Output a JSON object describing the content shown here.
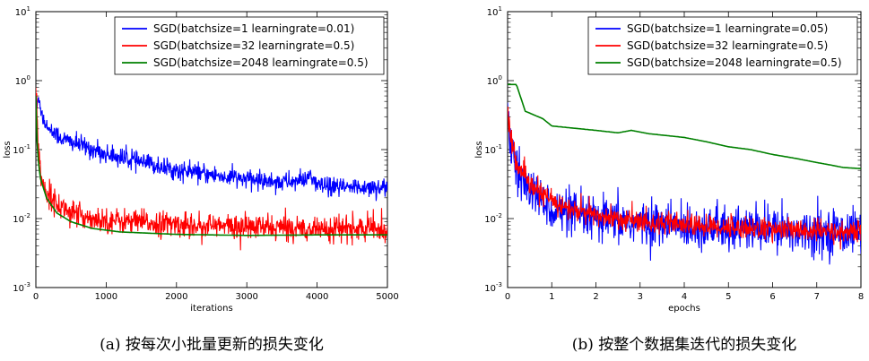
{
  "chart_data": [
    {
      "type": "line",
      "id": "a",
      "yscale": "log",
      "ylabel": "loss",
      "xlabel": "iterations",
      "xlim": [
        0,
        5000
      ],
      "xticks": [
        0,
        1000,
        2000,
        3000,
        4000,
        5000
      ],
      "ylim_exp": [
        -3,
        1
      ],
      "caption": "(a) 按每次小批量更新的损失变化",
      "legend_position": "top-right",
      "series": [
        {
          "name": "SGD(batchsize=1 learningrate=0.01)",
          "color": "#0000ff",
          "noise": 0.07,
          "points": [
            [
              0,
              0.3
            ],
            [
              40,
              0.6
            ],
            [
              100,
              0.28
            ],
            [
              200,
              0.19
            ],
            [
              400,
              0.14
            ],
            [
              700,
              0.11
            ],
            [
              1000,
              0.085
            ],
            [
              1500,
              0.065
            ],
            [
              2000,
              0.05
            ],
            [
              2500,
              0.043
            ],
            [
              3000,
              0.037
            ],
            [
              3500,
              0.034
            ],
            [
              3800,
              0.035
            ],
            [
              3900,
              0.043
            ],
            [
              4000,
              0.03
            ],
            [
              4200,
              0.028
            ],
            [
              4500,
              0.028
            ],
            [
              4700,
              0.029
            ],
            [
              5000,
              0.028
            ]
          ]
        },
        {
          "name": "SGD(batchsize=32 learningrate=0.5)",
          "color": "#ff0000",
          "noise": 0.09,
          "points": [
            [
              0,
              1.0
            ],
            [
              30,
              0.1
            ],
            [
              80,
              0.04
            ],
            [
              150,
              0.025
            ],
            [
              300,
              0.016
            ],
            [
              600,
              0.011
            ],
            [
              1000,
              0.0095
            ],
            [
              2000,
              0.0082
            ],
            [
              3000,
              0.0075
            ],
            [
              4000,
              0.0072
            ],
            [
              5000,
              0.007
            ]
          ]
        },
        {
          "name": "SGD(batchsize=2048 learningrate=0.5)",
          "color": "#008000",
          "noise": 0.0,
          "points": [
            [
              0,
              0.6
            ],
            [
              20,
              0.1
            ],
            [
              60,
              0.04
            ],
            [
              150,
              0.02
            ],
            [
              300,
              0.012
            ],
            [
              500,
              0.009
            ],
            [
              800,
              0.0072
            ],
            [
              1200,
              0.0064
            ],
            [
              2000,
              0.0059
            ],
            [
              3000,
              0.0057
            ],
            [
              4000,
              0.0058
            ],
            [
              5000,
              0.0058
            ]
          ]
        }
      ]
    },
    {
      "type": "line",
      "id": "b",
      "yscale": "log",
      "ylabel": "loss",
      "xlabel": "epochs",
      "xlim": [
        0,
        8
      ],
      "xticks": [
        0,
        1,
        2,
        3,
        4,
        5,
        6,
        7,
        8
      ],
      "ylim_exp": [
        -3,
        1
      ],
      "caption": "(b) 按整个数据集迭代的损失变化",
      "legend_position": "top-right",
      "series": [
        {
          "name": "SGD(batchsize=1 learningrate=0.05)",
          "color": "#0000ff",
          "noise": 0.16,
          "points": [
            [
              0,
              0.4
            ],
            [
              0.05,
              0.12
            ],
            [
              0.2,
              0.05
            ],
            [
              0.5,
              0.025
            ],
            [
              1,
              0.014
            ],
            [
              1.5,
              0.011
            ],
            [
              2,
              0.0095
            ],
            [
              3,
              0.0085
            ],
            [
              4,
              0.0078
            ],
            [
              5,
              0.0072
            ],
            [
              6,
              0.0068
            ],
            [
              7,
              0.0066
            ],
            [
              8,
              0.0064
            ]
          ]
        },
        {
          "name": "SGD(batchsize=32 learningrate=0.5)",
          "color": "#ff0000",
          "noise": 0.08,
          "points": [
            [
              0,
              0.35
            ],
            [
              0.05,
              0.2
            ],
            [
              0.2,
              0.06
            ],
            [
              0.5,
              0.03
            ],
            [
              1,
              0.018
            ],
            [
              1.5,
              0.013
            ],
            [
              2,
              0.011
            ],
            [
              3,
              0.009
            ],
            [
              4,
              0.008
            ],
            [
              5,
              0.0075
            ],
            [
              6,
              0.007
            ],
            [
              7,
              0.0065
            ],
            [
              8,
              0.0062
            ]
          ]
        },
        {
          "name": "SGD(batchsize=2048 learningrate=0.5)",
          "color": "#008000",
          "noise": 0.0,
          "points": [
            [
              0,
              0.88
            ],
            [
              0.2,
              0.88
            ],
            [
              0.4,
              0.36
            ],
            [
              0.8,
              0.28
            ],
            [
              1,
              0.22
            ],
            [
              2,
              0.19
            ],
            [
              2.5,
              0.175
            ],
            [
              2.8,
              0.19
            ],
            [
              3.2,
              0.17
            ],
            [
              4,
              0.15
            ],
            [
              4.5,
              0.13
            ],
            [
              5,
              0.11
            ],
            [
              5.5,
              0.1
            ],
            [
              6,
              0.085
            ],
            [
              6.5,
              0.075
            ],
            [
              7,
              0.065
            ],
            [
              7.3,
              0.06
            ],
            [
              7.6,
              0.055
            ],
            [
              8,
              0.053
            ]
          ]
        }
      ]
    }
  ]
}
